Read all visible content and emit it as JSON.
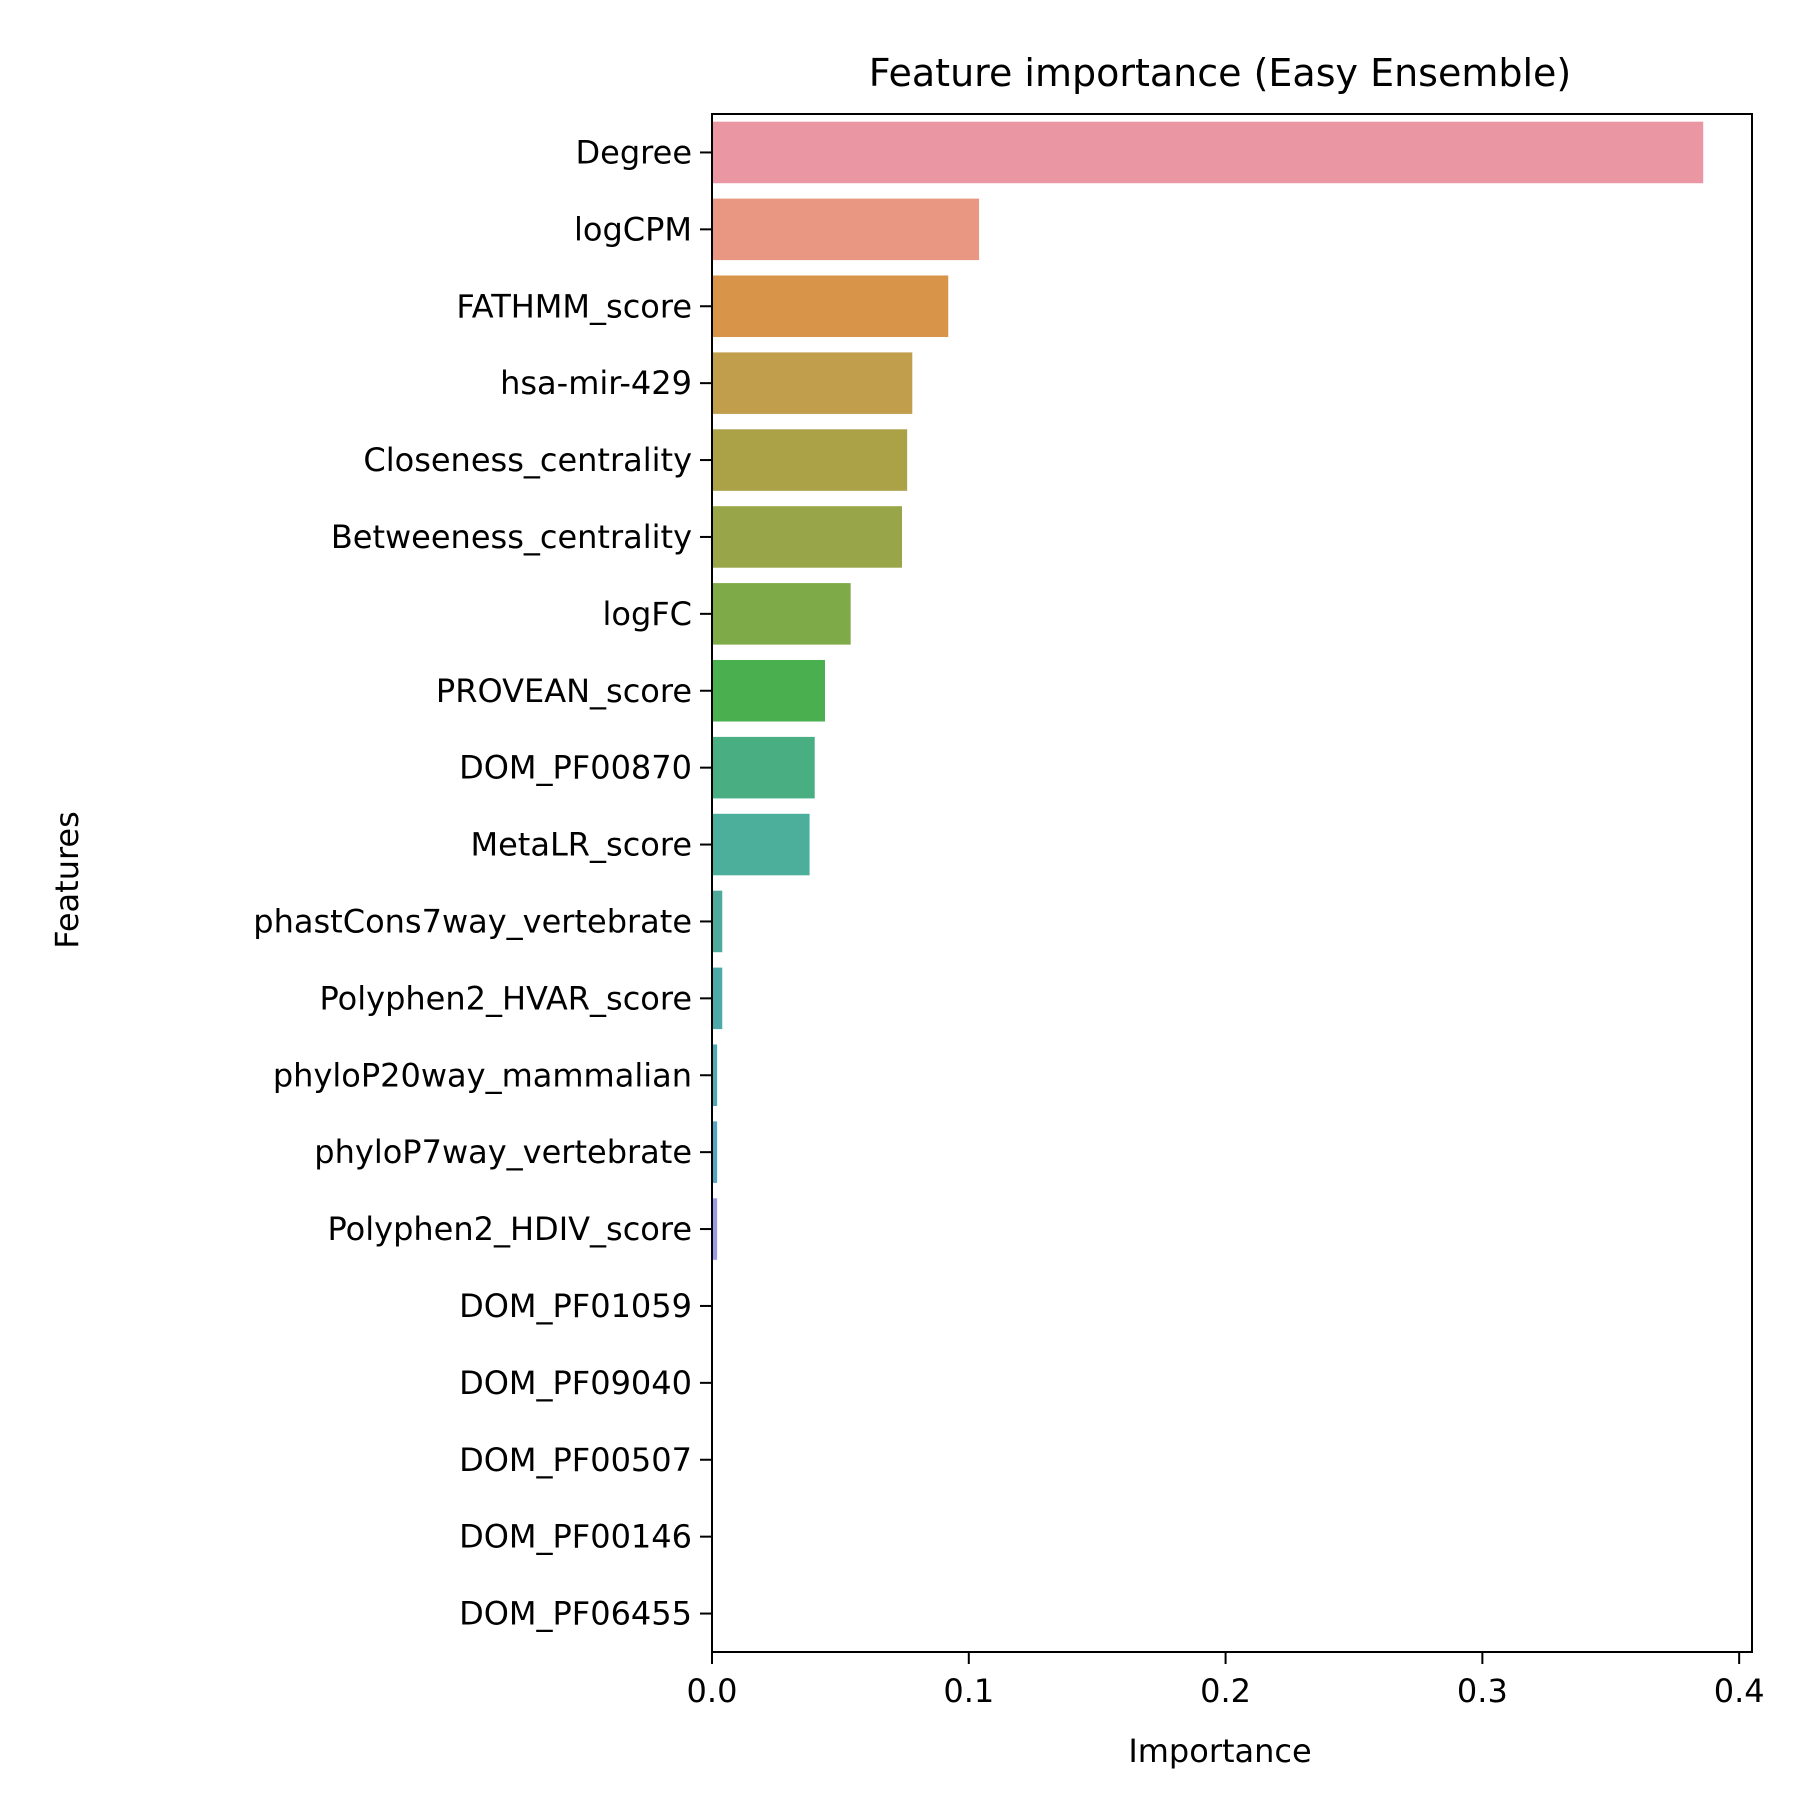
{
  "chart_data": {
    "type": "bar",
    "orientation": "horizontal",
    "title": "Feature importance (Easy Ensemble)",
    "xlabel": "Importance",
    "ylabel": "Features",
    "xlim": [
      0,
      0.405
    ],
    "xticks": [
      0.0,
      0.1,
      0.2,
      0.3,
      0.4
    ],
    "xtick_labels": [
      "0.0",
      "0.1",
      "0.2",
      "0.3",
      "0.4"
    ],
    "grid": false,
    "categories": [
      "Degree",
      "logCPM",
      "FATHMM_score",
      "hsa-mir-429",
      "Closeness_centrality",
      "Betweeness_centrality",
      "logFC",
      "PROVEAN_score",
      "DOM_PF00870",
      "MetaLR_score",
      "phastCons7way_vertebrate",
      "Polyphen2_HVAR_score",
      "phyloP20way_mammalian",
      "phyloP7way_vertebrate",
      "Polyphen2_HDIV_score",
      "DOM_PF01059",
      "DOM_PF09040",
      "DOM_PF00507",
      "DOM_PF00146",
      "DOM_PF06455"
    ],
    "values": [
      0.386,
      0.104,
      0.092,
      0.078,
      0.076,
      0.074,
      0.054,
      0.044,
      0.04,
      0.038,
      0.004,
      0.004,
      0.002,
      0.002,
      0.002,
      0.0,
      0.0,
      0.0,
      0.0,
      0.0
    ],
    "colors": [
      "#eb96a3",
      "#e99682",
      "#d89549",
      "#c19e4c",
      "#aba147",
      "#98a548",
      "#7faa48",
      "#4ab04f",
      "#4aae83",
      "#4caf9c",
      "#4eab9c",
      "#4eaaa9",
      "#4fa8b2",
      "#54a6c0",
      "#9b9ae3",
      "#b596e8",
      "#d58fe6",
      "#e690d8",
      "#ea8fbf",
      "#eb93ae"
    ]
  }
}
